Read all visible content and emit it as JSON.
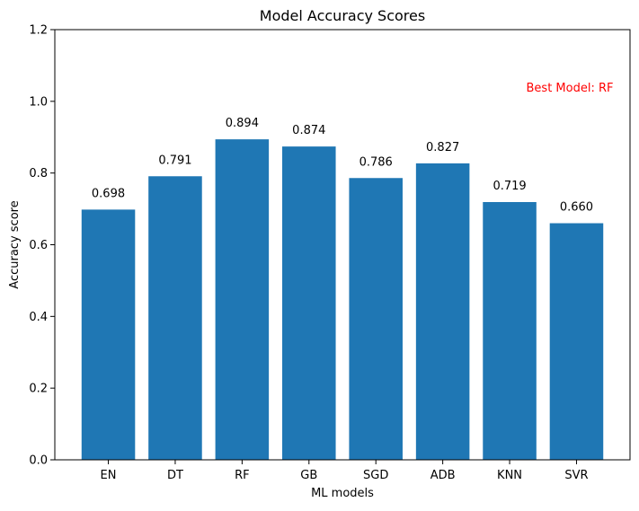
{
  "chart_data": {
    "type": "bar",
    "title": "Model Accuracy Scores",
    "xlabel": "ML models",
    "ylabel": "Accuracy score",
    "categories": [
      "EN",
      "DT",
      "RF",
      "GB",
      "SGD",
      "ADB",
      "KNN",
      "SVR"
    ],
    "values": [
      0.698,
      0.791,
      0.894,
      0.874,
      0.786,
      0.827,
      0.719,
      0.66
    ],
    "value_labels": [
      "0.698",
      "0.791",
      "0.894",
      "0.874",
      "0.786",
      "0.827",
      "0.719",
      "0.660"
    ],
    "ylim": [
      0,
      1.2
    ],
    "yticks": [
      0.0,
      0.2,
      0.4,
      0.6,
      0.8,
      1.0,
      1.2
    ],
    "ytick_labels": [
      "0.0",
      "0.2",
      "0.4",
      "0.6",
      "0.8",
      "1.0",
      "1.2"
    ],
    "grid": false,
    "legend": "none",
    "bar_color": "#1f77b4",
    "annotation": {
      "text": "Best Model: RF",
      "color": "#ff0000",
      "x": 7,
      "y": 1.04
    }
  }
}
